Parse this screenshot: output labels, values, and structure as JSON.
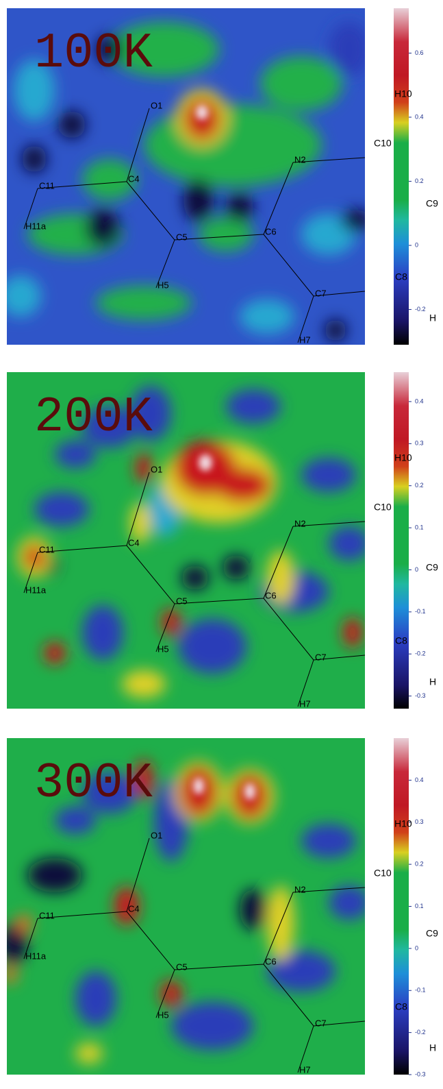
{
  "panels": [
    {
      "label": "100K",
      "colorbar": {
        "lim": [
          -0.31,
          0.74
        ],
        "ticks": [
          -0.2,
          0,
          0.2,
          0.4,
          0.6
        ]
      }
    },
    {
      "label": "200K",
      "colorbar": {
        "lim": [
          -0.33,
          0.47
        ],
        "ticks": [
          -0.3,
          -0.2,
          -0.1,
          0,
          0.1,
          0.2,
          0.3,
          0.4
        ]
      }
    },
    {
      "label": "300K",
      "colorbar": {
        "lim": [
          -0.3,
          0.5
        ],
        "ticks": [
          -0.3,
          -0.2,
          -0.1,
          0,
          0.1,
          0.2,
          0.3,
          0.4
        ]
      }
    }
  ],
  "atoms": [
    "O1",
    "C4",
    "C11",
    "H11a",
    "C5",
    "H5",
    "C6",
    "N2",
    "C7",
    "H7"
  ],
  "edge_labels": [
    "H10",
    "C10",
    "C9",
    "C8",
    "H"
  ]
}
